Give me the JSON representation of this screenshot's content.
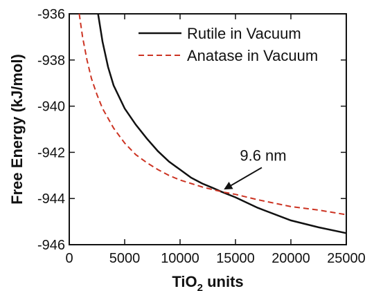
{
  "chart_data": {
    "type": "line",
    "xlabel_main": "TiO",
    "xlabel_sub": "2",
    "xlabel_rest": " units",
    "ylabel": "Free Energy (kJ/mol)",
    "xlim": [
      0,
      25000
    ],
    "ylim": [
      -946,
      -936
    ],
    "xticks": [
      0,
      5000,
      10000,
      15000,
      20000,
      25000
    ],
    "xtick_labels": [
      "0",
      "5000",
      "10000",
      "15000",
      "20000",
      "25000"
    ],
    "yticks": [
      -946,
      -944,
      -942,
      -940,
      -938,
      -936
    ],
    "ytick_labels": [
      "-946",
      "-944",
      "-942",
      "-940",
      "-938",
      "-936"
    ],
    "grid": false,
    "legend_position": "top-right",
    "series": [
      {
        "name": "Rutile in Vacuum",
        "color": "#111111",
        "dash": "solid",
        "x": [
          2600,
          3000,
          3500,
          4000,
          5000,
          6000,
          7000,
          8000,
          9000,
          10000,
          11000,
          12000,
          13000,
          13700,
          15000,
          17000,
          20000,
          22500,
          25000
        ],
        "y": [
          -936.0,
          -937.2,
          -938.3,
          -939.1,
          -940.1,
          -940.8,
          -941.4,
          -941.95,
          -942.4,
          -942.75,
          -943.1,
          -943.35,
          -943.55,
          -943.7,
          -943.95,
          -944.4,
          -944.95,
          -945.25,
          -945.5
        ]
      },
      {
        "name": "Anatase in Vacuum",
        "color": "#cc3322",
        "dash": "dashed",
        "x": [
          900,
          1200,
          1600,
          2000,
          2500,
          3000,
          4000,
          5000,
          6000,
          7000,
          8000,
          9000,
          10000,
          11000,
          12000,
          13000,
          14000,
          15000,
          17000,
          20000,
          22500,
          25000
        ],
        "y": [
          -936.0,
          -937.0,
          -938.0,
          -938.8,
          -939.5,
          -940.1,
          -940.95,
          -941.6,
          -942.1,
          -942.45,
          -942.75,
          -943.0,
          -943.2,
          -943.35,
          -943.5,
          -943.62,
          -943.73,
          -943.82,
          -944.05,
          -944.35,
          -944.5,
          -944.7
        ]
      }
    ],
    "annotation": {
      "text": "9.6 nm",
      "x": 13700,
      "y": -943.7,
      "text_x": 15000,
      "text_y": -942.6
    }
  }
}
